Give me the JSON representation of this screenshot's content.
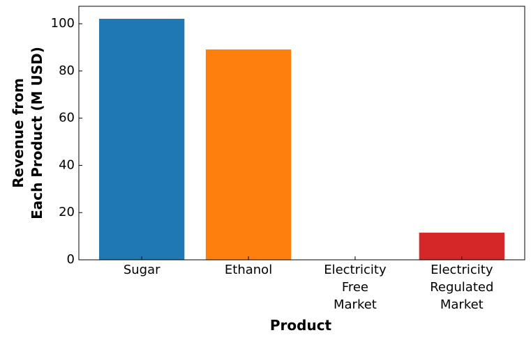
{
  "chart_data": {
    "type": "bar",
    "x_label": "Product",
    "y_label": "Revenue from\nEach Product (M USD)",
    "categories": [
      "Sugar",
      "Ethanol",
      "Electricity\nFree\nMarket",
      "Electricity\nRegulated\nMarket"
    ],
    "values": [
      102.1,
      89.1,
      0,
      11.5
    ],
    "colors": [
      "#1f77b4",
      "#ff7f0e",
      "#2ca02c",
      "#d62728"
    ],
    "ylim": [
      0,
      107.4
    ],
    "yticks": [
      0,
      20,
      40,
      60,
      80,
      100
    ]
  }
}
